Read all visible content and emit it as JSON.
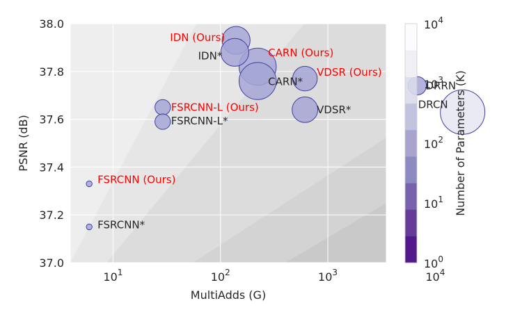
{
  "chart_data": {
    "type": "scatter",
    "xlabel": "MultiAdds (G)",
    "ylabel": "PSNR (dB)",
    "x_scale": "log",
    "xlim": [
      4,
      3500
    ],
    "ylim": [
      37.0,
      38.0
    ],
    "x_ticks": [
      {
        "value": 10,
        "base": "10",
        "exp": "1"
      },
      {
        "value": 100,
        "base": "10",
        "exp": "2"
      },
      {
        "value": 1000,
        "base": "10",
        "exp": "3"
      },
      {
        "value": 10000,
        "base": "10",
        "exp": "4"
      }
    ],
    "y_ticks": [
      {
        "value": 37.0,
        "label": "37.0"
      },
      {
        "value": 37.2,
        "label": "37.2"
      },
      {
        "value": 37.4,
        "label": "37.4"
      },
      {
        "value": 37.6,
        "label": "37.6"
      },
      {
        "value": 37.8,
        "label": "37.8"
      },
      {
        "value": 38.0,
        "label": "38.0"
      }
    ],
    "grid": true,
    "points": [
      {
        "label": "IDN (Ours)",
        "multiadds": 140,
        "psnr": 37.93,
        "params_k": 80,
        "highlight": true
      },
      {
        "label": "IDN*",
        "multiadds": 136,
        "psnr": 37.88,
        "params_k": 80,
        "highlight": false
      },
      {
        "label": "CARN (Ours)",
        "multiadds": 222,
        "psnr": 37.82,
        "params_k": 150,
        "highlight": true
      },
      {
        "label": "CARN*",
        "multiadds": 222,
        "psnr": 37.76,
        "params_k": 150,
        "highlight": false
      },
      {
        "label": "VDSR (Ours)",
        "multiadds": 612,
        "psnr": 37.77,
        "params_k": 60,
        "highlight": true
      },
      {
        "label": "VDSR*",
        "multiadds": 612,
        "psnr": 37.64,
        "params_k": 66,
        "highlight": false
      },
      {
        "label": "DRRN",
        "multiadds": 6800,
        "psnr": 37.74,
        "params_k": 30,
        "highlight": false
      },
      {
        "label": "DRCN",
        "multiadds": 17974,
        "psnr": 37.63,
        "params_k": 1774,
        "highlight": false
      },
      {
        "label": "FSRCNN-L (Ours)",
        "multiadds": 29,
        "psnr": 37.65,
        "params_k": 20,
        "highlight": true
      },
      {
        "label": "FSRCNN-L*",
        "multiadds": 29,
        "psnr": 37.59,
        "params_k": 20,
        "highlight": false
      },
      {
        "label": "FSRCNN (Ours)",
        "multiadds": 6,
        "psnr": 37.33,
        "params_k": 1,
        "highlight": true
      },
      {
        "label": "FSRCNN*",
        "multiadds": 6,
        "psnr": 37.15,
        "params_k": 1,
        "highlight": false
      }
    ],
    "colorbar": {
      "label": "Number of Parameters (K)",
      "scale": "log",
      "range": [
        1,
        10000
      ],
      "ticks": [
        {
          "value": 1,
          "base": "10",
          "exp": "0"
        },
        {
          "value": 10,
          "base": "10",
          "exp": "1"
        },
        {
          "value": 100,
          "base": "10",
          "exp": "2"
        },
        {
          "value": 1000,
          "base": "10",
          "exp": "3"
        },
        {
          "value": 10000,
          "base": "10",
          "exp": "4"
        }
      ],
      "colors": [
        "#3f007d",
        "#54278f",
        "#6a51a3",
        "#807dba",
        "#9e9ac8",
        "#bcbddc",
        "#dadaeb",
        "#efedf5",
        "#fcfbfd"
      ]
    },
    "colors": {
      "highlight_text": "#ff0000",
      "normal_text": "#262626",
      "marker_edge": "#3f3fa0"
    }
  }
}
